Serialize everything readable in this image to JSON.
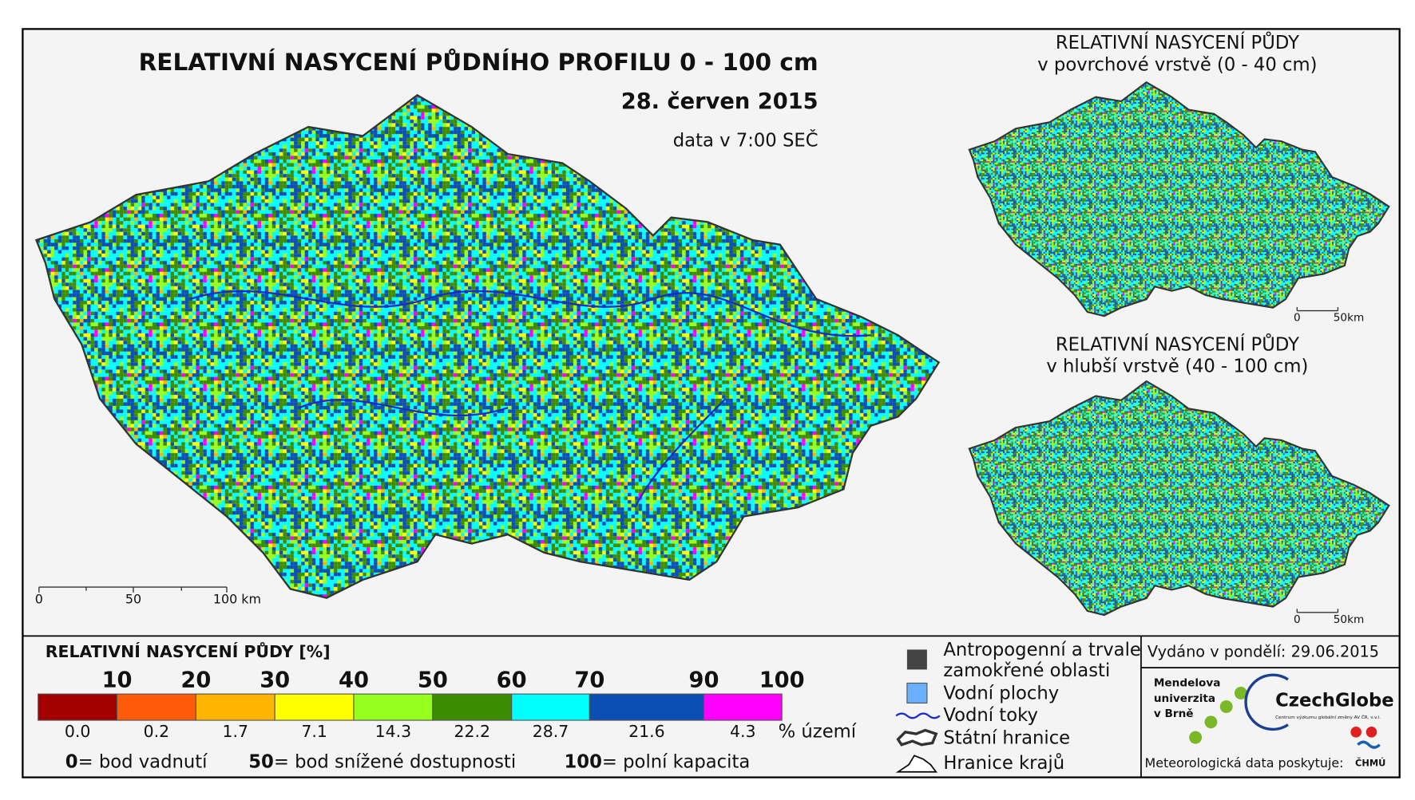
{
  "title": "RELATIVNÍ NASYCENÍ PŮDNÍHO PROFILU 0 - 100 cm",
  "date": "28. červen 2015",
  "data_time": "data v 7:00 SEČ",
  "main_scale": [
    "0",
    "50",
    "100 km"
  ],
  "insets": [
    {
      "title": [
        "RELATIVNÍ NASYCENÍ PŮDY",
        "v povrchové vrstvě (0 - 40 cm)"
      ],
      "scale": [
        "0",
        "50km"
      ]
    },
    {
      "title": [
        "RELATIVNÍ NASYCENÍ PŮDY",
        "v hlubší vrstvě (40 - 100 cm)"
      ],
      "scale": [
        "0",
        "50km"
      ]
    }
  ],
  "legend": {
    "title": "RELATIVNÍ NASYCENÍ PŮDY [%]",
    "bounds": [
      10,
      20,
      30,
      40,
      50,
      60,
      70,
      90,
      100
    ],
    "classes": [
      {
        "color": "#a50000",
        "share": "0.0"
      },
      {
        "color": "#ff5a0a",
        "share": "0.2"
      },
      {
        "color": "#ffb400",
        "share": "1.7"
      },
      {
        "color": "#ffff00",
        "share": "7.1"
      },
      {
        "color": "#96ff1e",
        "share": "14.3"
      },
      {
        "color": "#3c8c00",
        "share": "22.2"
      },
      {
        "color": "#00ffff",
        "share": "28.7"
      },
      {
        "color": "#0a50b4",
        "share": "21.6"
      },
      {
        "color": "#ff00ff",
        "share": "4.3"
      }
    ],
    "share_unit": "% území",
    "notes": [
      {
        "value": "0",
        "text": "= bod vadnutí"
      },
      {
        "value": "50",
        "text": "= bod snížené dostupnosti"
      },
      {
        "value": "100",
        "text": "= polní kapacita"
      }
    ]
  },
  "symbols": [
    [
      "Antropogenní a trvale",
      "zamokřené oblasti"
    ],
    [
      "Vodní plochy"
    ],
    [
      "Vodní toky"
    ],
    [
      "Státní hranice"
    ],
    [
      "Hranice krajů"
    ]
  ],
  "issued": "Vydáno v pondělí: 29.06.2015",
  "logos": {
    "mendel": [
      "Mendelova",
      "univerzita",
      "v Brně"
    ],
    "czechglobe": "CzechGlobe",
    "czechglobe_sub": "Centrum výzkumu globální změny AV ČR, v.v.i.",
    "provider": "Meteorologická data poskytuje:",
    "chmu": "ČHMÚ"
  }
}
